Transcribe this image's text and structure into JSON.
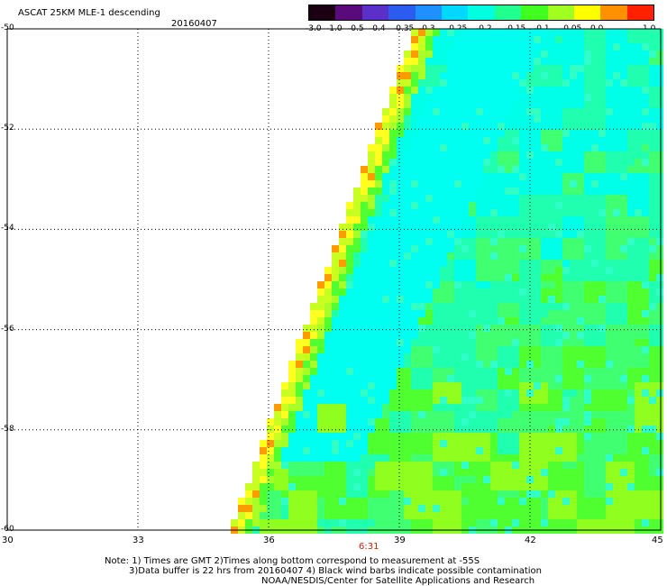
{
  "header": {
    "title": "ASCAT 25KM MLE-1 descending",
    "date": "20160407"
  },
  "colorbar": {
    "labels": [
      "-3.0",
      "-1.0",
      "-0.5",
      "-0.4",
      "-0.35",
      "-0.3",
      "-0.25",
      "-0.2",
      "-0.15",
      "-0.1",
      "-0.05",
      "0.0",
      "1.0"
    ],
    "colors": [
      "#1a0010",
      "#5a0a7a",
      "#5a30c8",
      "#2a5cf0",
      "#1e90ff",
      "#00d8ff",
      "#00ffe0",
      "#20ff90",
      "#40ff20",
      "#a0ff20",
      "#ffff00",
      "#ff9000",
      "#ff2000"
    ]
  },
  "map": {
    "lon_ticks": [
      "30",
      "33",
      "36",
      "39",
      "42",
      "45"
    ],
    "lat_ticks": [
      "-50",
      "-52",
      "-54",
      "-56",
      "-58",
      "-60"
    ],
    "time_marker": "6:31",
    "time_marker_color": "#cc2200",
    "lon_range": [
      30,
      45
    ],
    "lat_range": [
      -60,
      -50
    ]
  },
  "notes": {
    "line1": "Note: 1) Times are GMT 2)Times along bottom correspond to measurement at -55S",
    "line2": "3)Data buffer is 22 hrs from 20160407 4) Black wind barbs indicate possible contamination",
    "line3": "NOAA/NESDIS/Center for Satellite Applications and Research"
  }
}
